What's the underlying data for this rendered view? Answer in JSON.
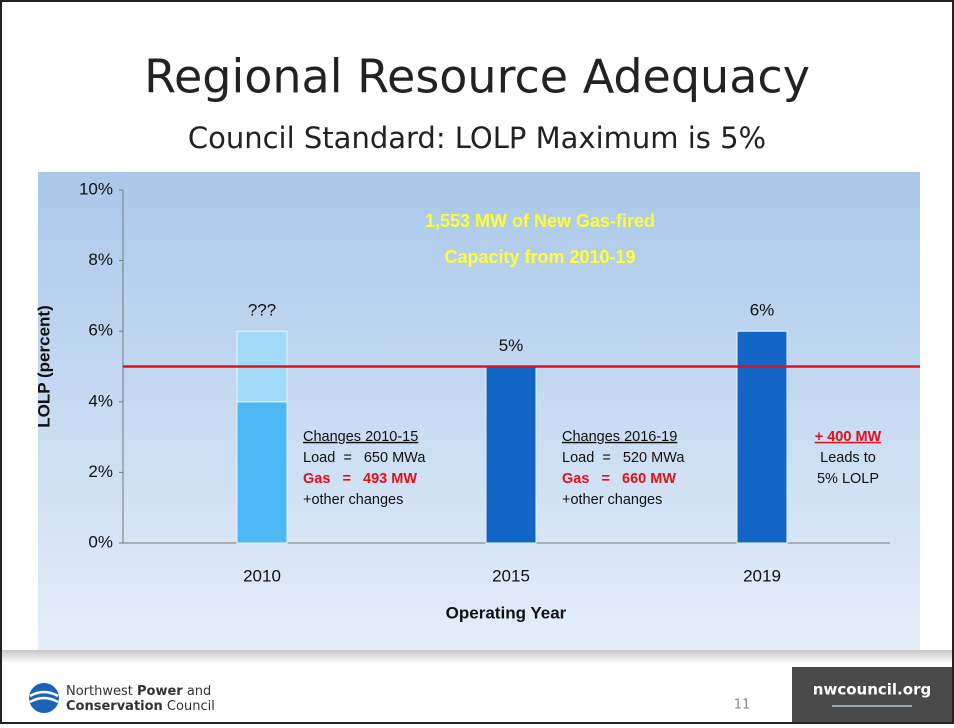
{
  "slide": {
    "title": "Regional Resource Adequacy",
    "subtitle": "Council Standard: LOLP Maximum is 5%",
    "page_number": "11",
    "website": "nwcouncil.org",
    "org_name": [
      [
        "Northwest ",
        "Power",
        " and"
      ],
      [
        "Conservation",
        " Council"
      ]
    ]
  },
  "chart_data": {
    "type": "bar",
    "stacked": true,
    "categories": [
      "2010",
      "2015",
      "2019"
    ],
    "series": [
      {
        "values": [
          4,
          5,
          6
        ],
        "colors": [
          "#4db8f3",
          "#1466c6",
          "#1466c6"
        ]
      },
      {
        "values": [
          2,
          null,
          null
        ],
        "color": "#a3dbf8"
      }
    ],
    "bar_labels": [
      "???",
      "5%",
      "6%"
    ],
    "ylim": [
      0,
      10
    ],
    "yticks": [
      {
        "value": 0,
        "label": "0%"
      },
      {
        "value": 2,
        "label": "2%"
      },
      {
        "value": 4,
        "label": "4%"
      },
      {
        "value": 6,
        "label": "6%"
      },
      {
        "value": 8,
        "label": "8%"
      },
      {
        "value": 10,
        "label": "10%"
      }
    ],
    "ylabel": "LOLP (percent)",
    "xlabel": "Operating Year",
    "threshold": {
      "value": 5,
      "color": "#e3101b"
    },
    "headline": [
      "1,553 MW of New Gas-fired",
      "Capacity from 2010-19"
    ],
    "notes": [
      {
        "heading": "Changes 2010-15",
        "lines": [
          "Load  =   650 MWa",
          "Gas   =   493 MW",
          "+other changes"
        ]
      },
      {
        "heading": "Changes 2016-19",
        "lines": [
          "Load  =   520 MWa",
          "Gas   =   660 MW",
          "+other changes"
        ]
      },
      {
        "heading": "+ 400 MW",
        "lines": [
          "Leads to",
          "5% LOLP"
        ]
      }
    ]
  }
}
